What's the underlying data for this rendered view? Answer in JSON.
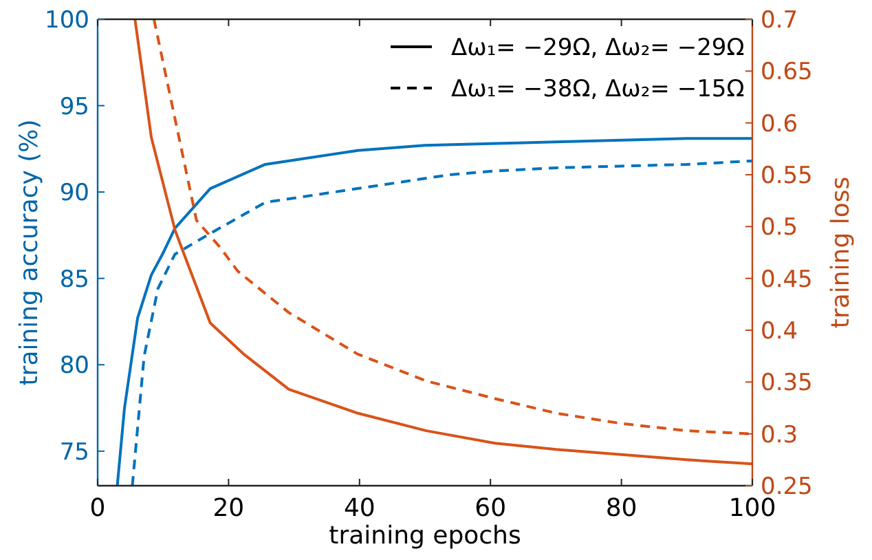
{
  "chart_data": {
    "type": "line",
    "xlabel": "training epochs",
    "ylabel": "training accuracy (%)",
    "y2label": "training loss",
    "xlim": [
      0,
      100
    ],
    "xticks": [
      0,
      20,
      40,
      60,
      80,
      100
    ],
    "ylim": [
      73,
      100
    ],
    "yticks": [
      75,
      80,
      85,
      90,
      95,
      100
    ],
    "y2lim": [
      0.25,
      0.7
    ],
    "y2ticks": [
      0.25,
      0.3,
      0.35,
      0.4,
      0.45,
      0.5,
      0.55,
      0.6,
      0.65,
      0.7
    ],
    "annotations": [
      "Δω₁= −29Ω, Δω₂= −29Ω",
      "Δω₁= −38Ω, Δω₂= −15Ω"
    ],
    "grid": false,
    "series": [
      {
        "color": "#0072bd",
        "line_style": "solid",
        "x": [
          3,
          4.1,
          6.1,
          8.2,
          9.9,
          11.8,
          17.2,
          25.6,
          39.7,
          50,
          60,
          70,
          80,
          90,
          100
        ],
        "values": [
          73,
          77.5,
          82.7,
          85.2,
          86.4,
          87.9,
          90.2,
          91.6,
          92.4,
          92.7,
          92.8,
          92.9,
          93,
          93.1,
          93.1
        ]
      },
      {
        "color": "#0072bd",
        "line_style": "dashed",
        "x": [
          5.3,
          7.1,
          9.2,
          11.8,
          17.2,
          25.6,
          39.7,
          53.8,
          60,
          70,
          80,
          90,
          100
        ],
        "values": [
          73,
          80.5,
          84.4,
          86.4,
          87.6,
          89.4,
          90.2,
          91,
          91.2,
          91.4,
          91.5,
          91.6,
          91.8
        ]
      },
      {
        "color": "#d95319",
        "line_style": "solid",
        "axis": "y2",
        "x": [
          5.7,
          8.2,
          11.8,
          12.8,
          17.2,
          22.3,
          29.2,
          39.7,
          50.2,
          60.7,
          70,
          80,
          90,
          100
        ],
        "values": [
          0.7,
          0.586,
          0.497,
          0.48,
          0.407,
          0.377,
          0.343,
          0.32,
          0.303,
          0.291,
          0.285,
          0.28,
          0.275,
          0.271
        ]
      },
      {
        "color": "#d95319",
        "line_style": "dashed",
        "axis": "y2",
        "x": [
          8.6,
          15.1,
          18.7,
          21.4,
          29.2,
          39.7,
          50.2,
          60.7,
          70,
          80,
          90,
          100
        ],
        "values": [
          0.7,
          0.506,
          0.48,
          0.457,
          0.417,
          0.377,
          0.351,
          0.334,
          0.32,
          0.31,
          0.303,
          0.3
        ]
      }
    ]
  }
}
